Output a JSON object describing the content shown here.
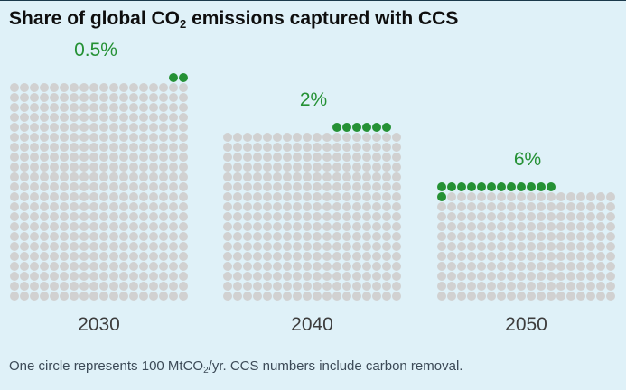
{
  "title": {
    "pre": "Share of global CO",
    "sub": "2",
    "post": " emissions captured with CCS"
  },
  "footnote": {
    "pre": "One circle represents 100 MtCO",
    "sub": "2",
    "post": "/yr. CCS numbers include carbon removal."
  },
  "colors": {
    "background": "#dff1f8",
    "grey_dot": "#d1d1d1",
    "green_dot": "#259135",
    "green_text": "#259135",
    "year_text": "#3d3d3d"
  },
  "chart_data": {
    "type": "waffle",
    "unit": "One circle = 100 MtCO2/yr",
    "categories": [
      "2030",
      "2040",
      "2050"
    ],
    "series": [
      {
        "year": "2030",
        "share_label": "0.5%",
        "total_circles": 397,
        "ccs_circles": 2
      },
      {
        "year": "2040",
        "share_label": "2%",
        "total_circles": 307,
        "ccs_circles": 6
      },
      {
        "year": "2050",
        "share_label": "6%",
        "total_circles": 213,
        "ccs_circles": 13
      }
    ]
  }
}
